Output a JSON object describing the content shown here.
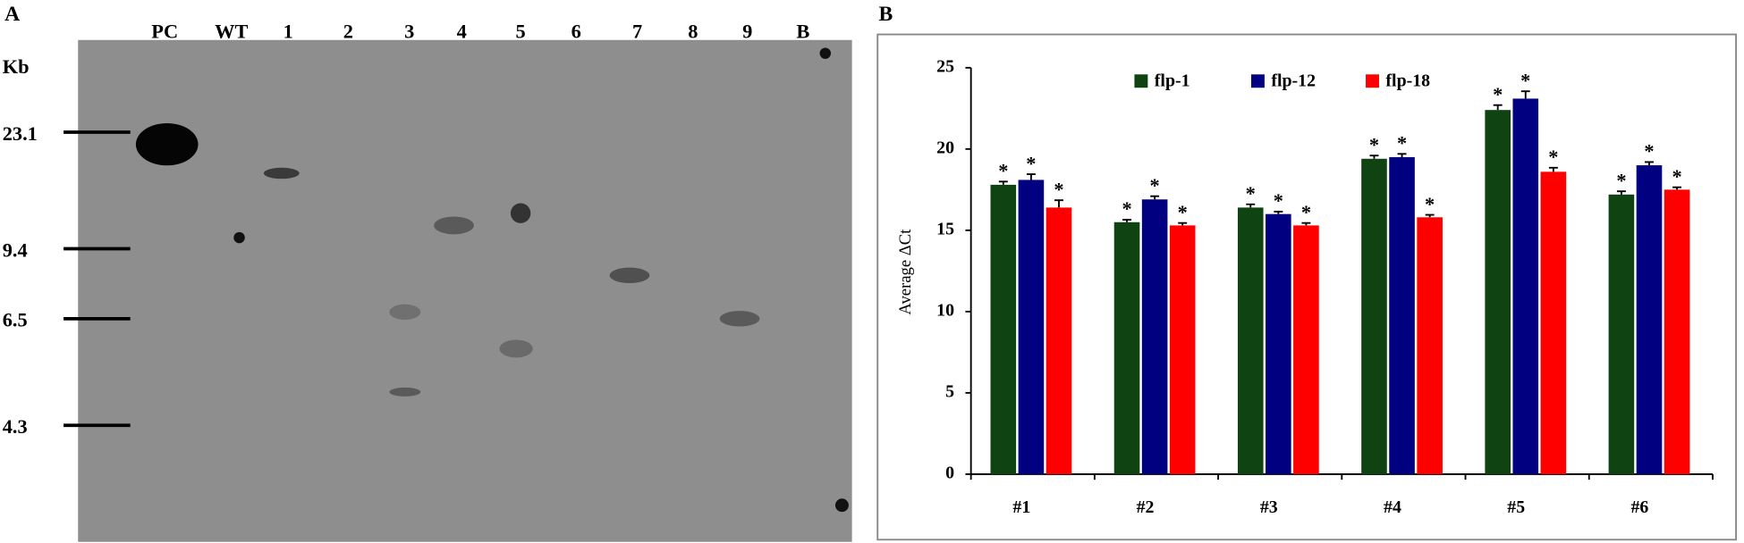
{
  "panel_a": {
    "label": "A",
    "unit": "Kb",
    "lanes": [
      "PC",
      "WT",
      "1",
      "2",
      "3",
      "4",
      "5",
      "6",
      "7",
      "8",
      "9",
      "B"
    ],
    "markers": [
      "23.1",
      "9.4",
      "6.5",
      "4.3"
    ]
  },
  "chart_data": {
    "type": "bar",
    "panel_label": "B",
    "ylabel": "Average ΔCt",
    "categories": [
      "#1",
      "#2",
      "#3",
      "#4",
      "#5",
      "#6"
    ],
    "series": [
      {
        "name": "flp-1",
        "color": "#0f4312",
        "values": [
          17.8,
          15.5,
          16.4,
          19.4,
          22.4,
          17.2
        ],
        "errors": [
          0.2,
          0.15,
          0.2,
          0.2,
          0.3,
          0.2
        ]
      },
      {
        "name": "flp-12",
        "color": "#000080",
        "values": [
          18.1,
          16.9,
          16.0,
          19.5,
          23.1,
          19.0
        ],
        "errors": [
          0.35,
          0.2,
          0.15,
          0.2,
          0.45,
          0.2
        ]
      },
      {
        "name": "flp-18",
        "color": "#ff0000",
        "values": [
          16.4,
          15.3,
          15.3,
          15.8,
          18.6,
          17.5
        ],
        "errors": [
          0.45,
          0.15,
          0.15,
          0.15,
          0.25,
          0.15
        ]
      }
    ],
    "annotation": "*",
    "ylim": [
      0,
      25
    ],
    "yticks": [
      0,
      5,
      10,
      15,
      20,
      25
    ],
    "grid": false,
    "legend": "top"
  }
}
